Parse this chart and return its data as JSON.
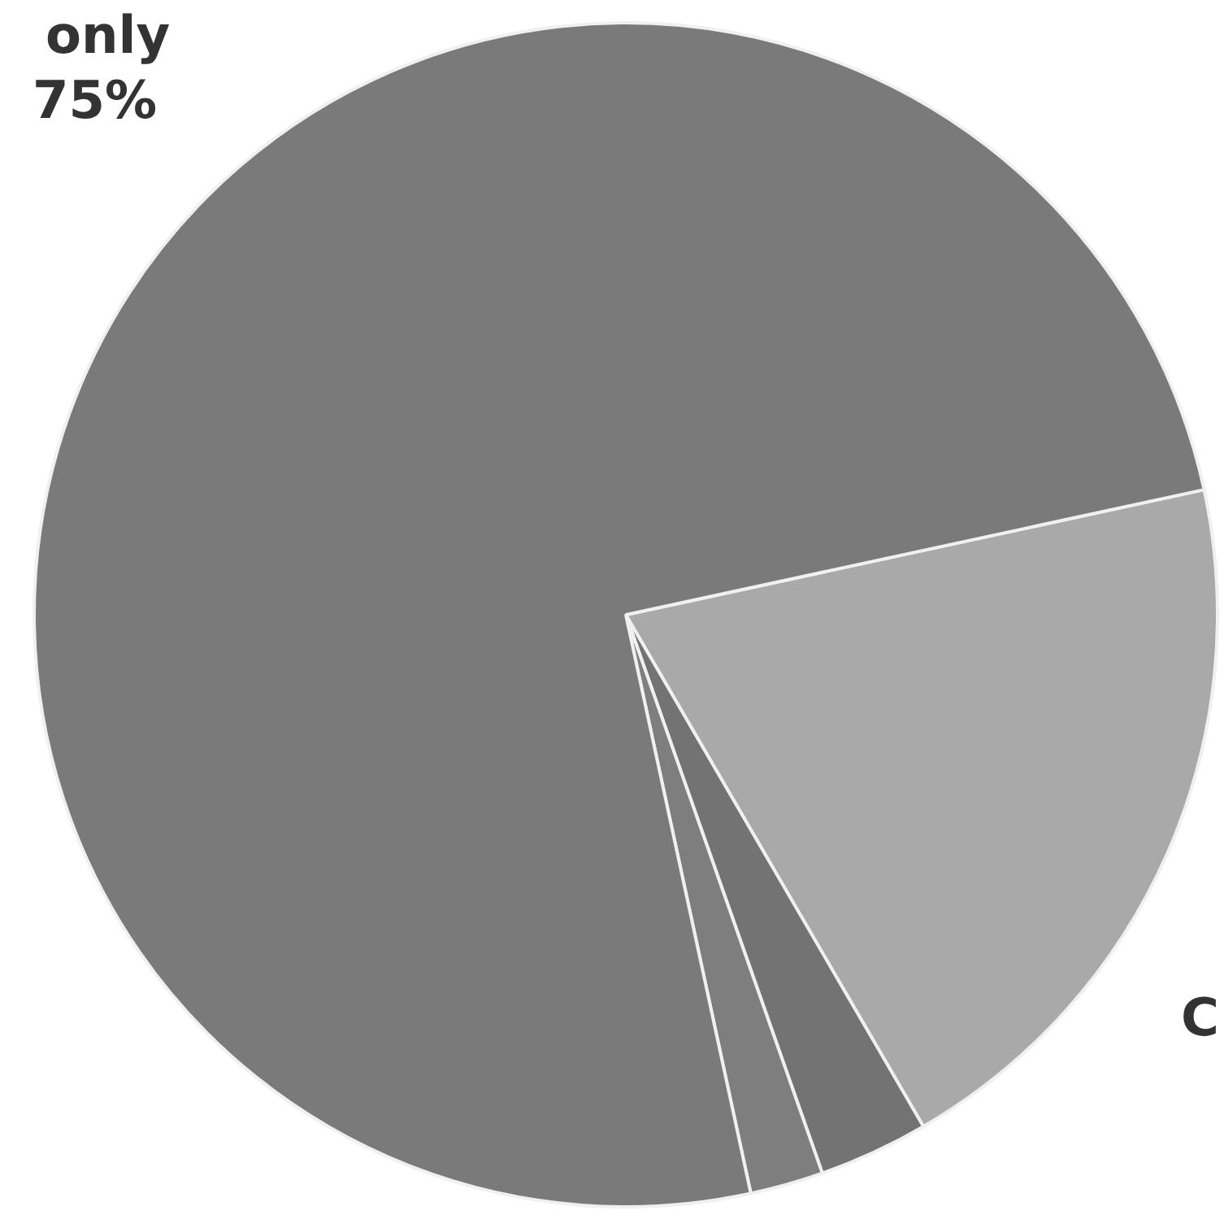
{
  "chart_data": {
    "type": "pie",
    "categories": [
      null,
      null,
      null,
      "only"
    ],
    "values": [
      20,
      3,
      2,
      75
    ],
    "colors": [
      "#a9a9a9",
      "#737373",
      "#7e7e7e",
      "#7a7a7a"
    ],
    "value_labels": [
      null,
      null,
      null,
      "75%"
    ],
    "annotations": [
      "C"
    ],
    "legend": false
  }
}
